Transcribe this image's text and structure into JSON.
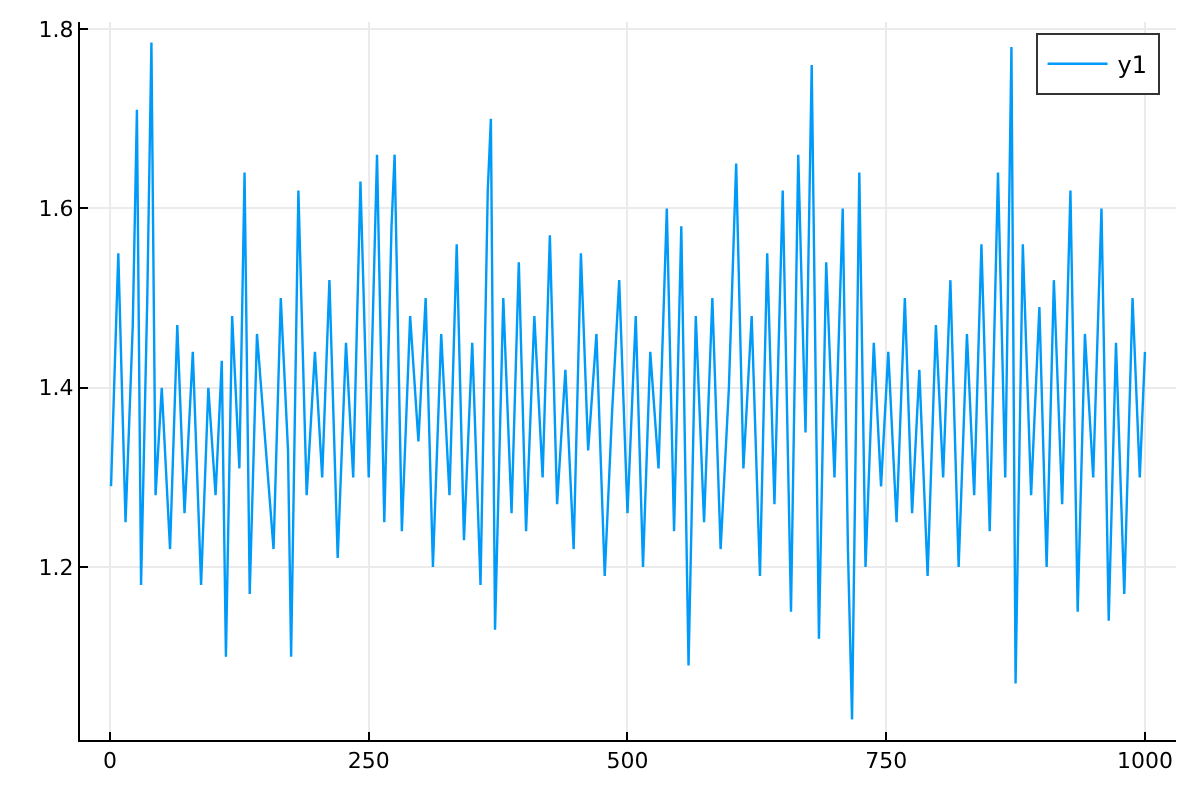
{
  "chart_data": {
    "type": "line",
    "xlim": [
      -29,
      1030
    ],
    "xticks": [
      0,
      250,
      500,
      750,
      1000
    ],
    "ylim": [
      1.007,
      1.808
    ],
    "yticks": [
      1.2,
      1.4,
      1.6,
      1.8
    ],
    "grid": true,
    "legend": "top right",
    "series": [
      {
        "name": "y1",
        "color": "#009af9",
        "x": [
          1,
          8,
          15,
          22,
          26,
          30,
          36,
          40,
          44,
          50,
          58,
          65,
          72,
          80,
          88,
          95,
          102,
          108,
          112,
          118,
          125,
          130,
          135,
          142,
          150,
          158,
          165,
          172,
          175,
          182,
          190,
          198,
          205,
          212,
          220,
          228,
          235,
          242,
          250,
          258,
          265,
          272,
          275,
          282,
          290,
          298,
          305,
          312,
          320,
          328,
          335,
          342,
          350,
          358,
          365,
          368,
          372,
          380,
          388,
          395,
          402,
          410,
          418,
          425,
          432,
          440,
          448,
          455,
          462,
          470,
          478,
          485,
          492,
          500,
          508,
          515,
          522,
          530,
          538,
          545,
          552,
          559,
          566,
          574,
          582,
          590,
          598,
          605,
          612,
          620,
          628,
          635,
          642,
          650,
          658,
          665,
          672,
          678,
          685,
          692,
          700,
          708,
          713,
          717,
          724,
          730,
          738,
          745,
          752,
          760,
          768,
          775,
          782,
          790,
          798,
          805,
          812,
          820,
          828,
          835,
          842,
          850,
          858,
          865,
          871,
          875,
          882,
          890,
          898,
          905,
          912,
          920,
          928,
          935,
          942,
          950,
          958,
          965,
          972,
          980,
          988,
          995,
          1000
        ],
        "values": [
          1.29,
          1.55,
          1.25,
          1.47,
          1.71,
          1.18,
          1.5,
          1.785,
          1.28,
          1.4,
          1.22,
          1.47,
          1.26,
          1.44,
          1.18,
          1.4,
          1.28,
          1.43,
          1.1,
          1.48,
          1.31,
          1.64,
          1.17,
          1.46,
          1.34,
          1.22,
          1.5,
          1.33,
          1.1,
          1.62,
          1.28,
          1.44,
          1.3,
          1.52,
          1.21,
          1.45,
          1.3,
          1.63,
          1.3,
          1.66,
          1.25,
          1.58,
          1.66,
          1.24,
          1.48,
          1.34,
          1.5,
          1.2,
          1.46,
          1.28,
          1.56,
          1.23,
          1.45,
          1.18,
          1.62,
          1.7,
          1.13,
          1.5,
          1.26,
          1.54,
          1.24,
          1.48,
          1.3,
          1.57,
          1.27,
          1.42,
          1.22,
          1.55,
          1.33,
          1.46,
          1.19,
          1.37,
          1.52,
          1.26,
          1.48,
          1.2,
          1.44,
          1.31,
          1.6,
          1.24,
          1.58,
          1.09,
          1.48,
          1.25,
          1.5,
          1.22,
          1.4,
          1.65,
          1.31,
          1.48,
          1.19,
          1.55,
          1.27,
          1.62,
          1.15,
          1.66,
          1.35,
          1.76,
          1.12,
          1.54,
          1.3,
          1.6,
          1.22,
          1.03,
          1.64,
          1.2,
          1.45,
          1.29,
          1.44,
          1.25,
          1.5,
          1.26,
          1.42,
          1.19,
          1.47,
          1.3,
          1.52,
          1.2,
          1.46,
          1.28,
          1.56,
          1.24,
          1.64,
          1.3,
          1.78,
          1.07,
          1.56,
          1.28,
          1.49,
          1.2,
          1.52,
          1.27,
          1.62,
          1.15,
          1.46,
          1.3,
          1.6,
          1.14,
          1.45,
          1.17,
          1.5,
          1.3,
          1.44
        ]
      }
    ]
  }
}
